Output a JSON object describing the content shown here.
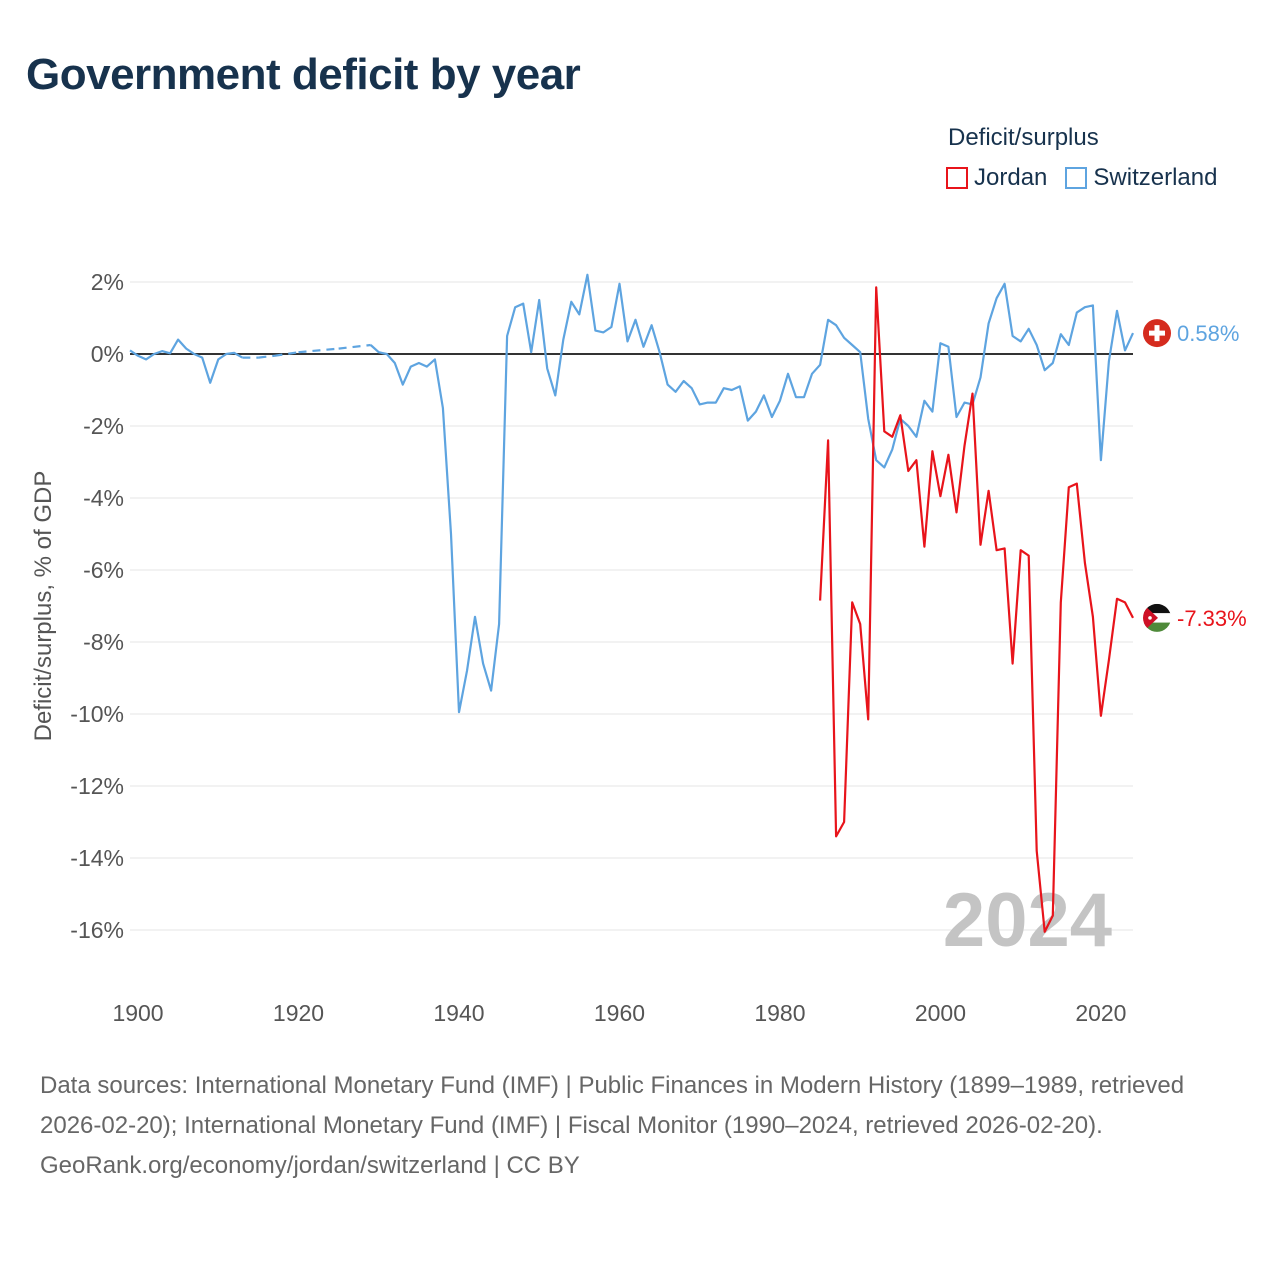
{
  "title": "Government deficit by year",
  "legend": {
    "title": "Deficit/surplus",
    "items": [
      {
        "label": "Jordan",
        "color": "#e8141b"
      },
      {
        "label": "Switzerland",
        "color": "#5ea4e0"
      }
    ]
  },
  "footer": {
    "sources": "Data sources: International Monetary Fund (IMF) | Public Finances in Modern History (1899–1989, retrieved 2026-02-20); International Monetary Fund (IMF) | Fiscal Monitor (1990–2024, retrieved 2026-02-20).",
    "credit": "GeoRank.org/economy/jordan/switzerland | CC BY"
  },
  "chart_data": {
    "type": "line",
    "title": "Government deficit by year",
    "xlabel": "",
    "ylabel": "Deficit/surplus, % of GDP",
    "xlim": [
      1899,
      2024
    ],
    "ylim": [
      -17,
      3
    ],
    "x_ticks": [
      1900,
      1920,
      1940,
      1960,
      1980,
      2000,
      2020
    ],
    "x_tick_labels": [
      "1900",
      "1920",
      "1940",
      "1960",
      "1980",
      "2000",
      "2020"
    ],
    "y_ticks": [
      2,
      0,
      -2,
      -4,
      -6,
      -8,
      -10,
      -12,
      -14,
      -16
    ],
    "y_tick_labels": [
      "2%",
      "0%",
      "-2%",
      "-4%",
      "-6%",
      "-8%",
      "-10%",
      "-12%",
      "-14%",
      "-16%"
    ],
    "year_watermark": "2024",
    "grid": true,
    "legend_position": "top-right",
    "series": [
      {
        "name": "Switzerland",
        "color": "#5ea4e0",
        "end_label": "0.58%",
        "gaps": [
          [
            1913,
            1929
          ]
        ],
        "points": [
          [
            1899,
            0.1
          ],
          [
            1900,
            -0.05
          ],
          [
            1901,
            -0.15
          ],
          [
            1902,
            0.0
          ],
          [
            1903,
            0.08
          ],
          [
            1904,
            0.02
          ],
          [
            1905,
            0.4
          ],
          [
            1906,
            0.15
          ],
          [
            1907,
            0.0
          ],
          [
            1908,
            -0.1
          ],
          [
            1909,
            -0.8
          ],
          [
            1910,
            -0.15
          ],
          [
            1911,
            0.0
          ],
          [
            1912,
            0.03
          ],
          [
            1913,
            -0.1
          ],
          [
            1915,
            -0.1
          ],
          [
            1917,
            -0.05
          ],
          [
            1920,
            0.05
          ],
          [
            1925,
            0.15
          ],
          [
            1929,
            0.25
          ],
          [
            1930,
            0.05
          ],
          [
            1931,
            0.0
          ],
          [
            1932,
            -0.25
          ],
          [
            1933,
            -0.85
          ],
          [
            1934,
            -0.35
          ],
          [
            1935,
            -0.25
          ],
          [
            1936,
            -0.35
          ],
          [
            1937,
            -0.15
          ],
          [
            1938,
            -1.5
          ],
          [
            1939,
            -5.0
          ],
          [
            1940,
            -9.95
          ],
          [
            1941,
            -8.8
          ],
          [
            1942,
            -7.3
          ],
          [
            1943,
            -8.6
          ],
          [
            1944,
            -9.35
          ],
          [
            1945,
            -7.5
          ],
          [
            1946,
            0.5
          ],
          [
            1947,
            1.3
          ],
          [
            1948,
            1.4
          ],
          [
            1949,
            0.05
          ],
          [
            1950,
            1.5
          ],
          [
            1951,
            -0.4
          ],
          [
            1952,
            -1.15
          ],
          [
            1953,
            0.4
          ],
          [
            1954,
            1.45
          ],
          [
            1955,
            1.1
          ],
          [
            1956,
            2.2
          ],
          [
            1957,
            0.65
          ],
          [
            1958,
            0.6
          ],
          [
            1959,
            0.75
          ],
          [
            1960,
            1.95
          ],
          [
            1961,
            0.35
          ],
          [
            1962,
            0.95
          ],
          [
            1963,
            0.2
          ],
          [
            1964,
            0.8
          ],
          [
            1965,
            0.05
          ],
          [
            1966,
            -0.85
          ],
          [
            1967,
            -1.05
          ],
          [
            1968,
            -0.75
          ],
          [
            1969,
            -0.95
          ],
          [
            1970,
            -1.4
          ],
          [
            1971,
            -1.35
          ],
          [
            1972,
            -1.35
          ],
          [
            1973,
            -0.95
          ],
          [
            1974,
            -1.0
          ],
          [
            1975,
            -0.9
          ],
          [
            1976,
            -1.85
          ],
          [
            1977,
            -1.6
          ],
          [
            1978,
            -1.15
          ],
          [
            1979,
            -1.75
          ],
          [
            1980,
            -1.3
          ],
          [
            1981,
            -0.55
          ],
          [
            1982,
            -1.2
          ],
          [
            1983,
            -1.2
          ],
          [
            1984,
            -0.55
          ],
          [
            1985,
            -0.3
          ],
          [
            1986,
            0.95
          ],
          [
            1987,
            0.8
          ],
          [
            1988,
            0.45
          ],
          [
            1989,
            0.25
          ],
          [
            1990,
            0.05
          ],
          [
            1991,
            -1.8
          ],
          [
            1992,
            -2.95
          ],
          [
            1993,
            -3.15
          ],
          [
            1994,
            -2.65
          ],
          [
            1995,
            -1.8
          ],
          [
            1996,
            -2.0
          ],
          [
            1997,
            -2.3
          ],
          [
            1998,
            -1.3
          ],
          [
            1999,
            -1.6
          ],
          [
            2000,
            0.3
          ],
          [
            2001,
            0.2
          ],
          [
            2002,
            -1.75
          ],
          [
            2003,
            -1.35
          ],
          [
            2004,
            -1.4
          ],
          [
            2005,
            -0.65
          ],
          [
            2006,
            0.85
          ],
          [
            2007,
            1.55
          ],
          [
            2008,
            1.95
          ],
          [
            2009,
            0.5
          ],
          [
            2010,
            0.35
          ],
          [
            2011,
            0.7
          ],
          [
            2012,
            0.25
          ],
          [
            2013,
            -0.45
          ],
          [
            2014,
            -0.25
          ],
          [
            2015,
            0.55
          ],
          [
            2016,
            0.25
          ],
          [
            2017,
            1.15
          ],
          [
            2018,
            1.3
          ],
          [
            2019,
            1.35
          ],
          [
            2020,
            -2.95
          ],
          [
            2021,
            -0.2
          ],
          [
            2022,
            1.2
          ],
          [
            2023,
            0.1
          ],
          [
            2024,
            0.58
          ]
        ]
      },
      {
        "name": "Jordan",
        "color": "#e8141b",
        "end_label": "-7.33%",
        "gaps": [],
        "points": [
          [
            1985,
            -6.85
          ],
          [
            1986,
            -2.4
          ],
          [
            1987,
            -13.4
          ],
          [
            1988,
            -13.0
          ],
          [
            1989,
            -6.9
          ],
          [
            1990,
            -7.5
          ],
          [
            1991,
            -10.15
          ],
          [
            1992,
            1.85
          ],
          [
            1993,
            -2.15
          ],
          [
            1994,
            -2.3
          ],
          [
            1995,
            -1.7
          ],
          [
            1996,
            -3.25
          ],
          [
            1997,
            -2.95
          ],
          [
            1998,
            -5.35
          ],
          [
            1999,
            -2.7
          ],
          [
            2000,
            -3.95
          ],
          [
            2001,
            -2.8
          ],
          [
            2002,
            -4.4
          ],
          [
            2003,
            -2.55
          ],
          [
            2004,
            -1.1
          ],
          [
            2005,
            -5.3
          ],
          [
            2006,
            -3.8
          ],
          [
            2007,
            -5.45
          ],
          [
            2008,
            -5.4
          ],
          [
            2009,
            -8.6
          ],
          [
            2010,
            -5.45
          ],
          [
            2011,
            -5.6
          ],
          [
            2012,
            -13.8
          ],
          [
            2013,
            -16.05
          ],
          [
            2014,
            -15.6
          ],
          [
            2015,
            -6.9
          ],
          [
            2016,
            -3.7
          ],
          [
            2017,
            -3.6
          ],
          [
            2018,
            -5.8
          ],
          [
            2019,
            -7.3
          ],
          [
            2020,
            -10.05
          ],
          [
            2021,
            -8.5
          ],
          [
            2022,
            -6.8
          ],
          [
            2023,
            -6.9
          ],
          [
            2024,
            -7.33
          ]
        ]
      }
    ]
  }
}
